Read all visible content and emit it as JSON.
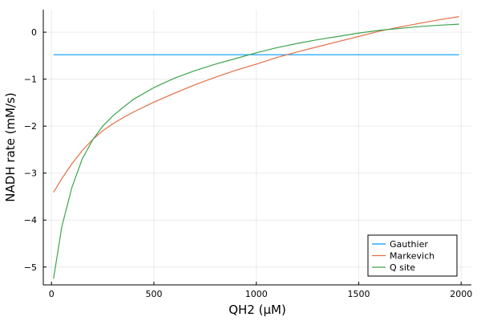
{
  "chart_data": {
    "type": "line",
    "title": "",
    "xlabel": "QH2 (μM)",
    "ylabel": "NADH rate (mM/s)",
    "xlim": [
      -40,
      2050
    ],
    "ylim": [
      -5.38,
      0.48
    ],
    "xticks": [
      0,
      500,
      1000,
      1500,
      2000
    ],
    "yticks": [
      -5,
      -4,
      -3,
      -2,
      -1,
      0
    ],
    "grid": true,
    "legend_position": "bottom-right",
    "x": [
      10,
      50,
      100,
      150,
      200,
      250,
      300,
      350,
      400,
      500,
      600,
      700,
      800,
      900,
      1000,
      1100,
      1200,
      1300,
      1400,
      1500,
      1600,
      1700,
      1800,
      1900,
      1990
    ],
    "series": [
      {
        "name": "Gauthier",
        "color": "#009AFA",
        "values": [
          -0.48,
          -0.48,
          -0.48,
          -0.48,
          -0.48,
          -0.48,
          -0.48,
          -0.48,
          -0.48,
          -0.48,
          -0.48,
          -0.48,
          -0.48,
          -0.48,
          -0.48,
          -0.48,
          -0.48,
          -0.48,
          -0.48,
          -0.48,
          -0.48,
          -0.48,
          -0.48,
          -0.48,
          -0.48
        ]
      },
      {
        "name": "Markevich",
        "color": "#E36F47",
        "values": [
          -3.41,
          -3.12,
          -2.8,
          -2.52,
          -2.29,
          -2.1,
          -1.95,
          -1.82,
          -1.7,
          -1.49,
          -1.3,
          -1.12,
          -0.96,
          -0.81,
          -0.68,
          -0.54,
          -0.42,
          -0.31,
          -0.2,
          -0.09,
          0.02,
          0.11,
          0.19,
          0.27,
          0.33
        ]
      },
      {
        "name": "Q site",
        "color": "#3EA44E",
        "values": [
          -5.25,
          -4.15,
          -3.3,
          -2.7,
          -2.3,
          -2.0,
          -1.78,
          -1.6,
          -1.43,
          -1.18,
          -0.98,
          -0.82,
          -0.68,
          -0.56,
          -0.44,
          -0.33,
          -0.24,
          -0.16,
          -0.09,
          -0.02,
          0.04,
          0.08,
          0.12,
          0.15,
          0.17
        ]
      }
    ]
  }
}
